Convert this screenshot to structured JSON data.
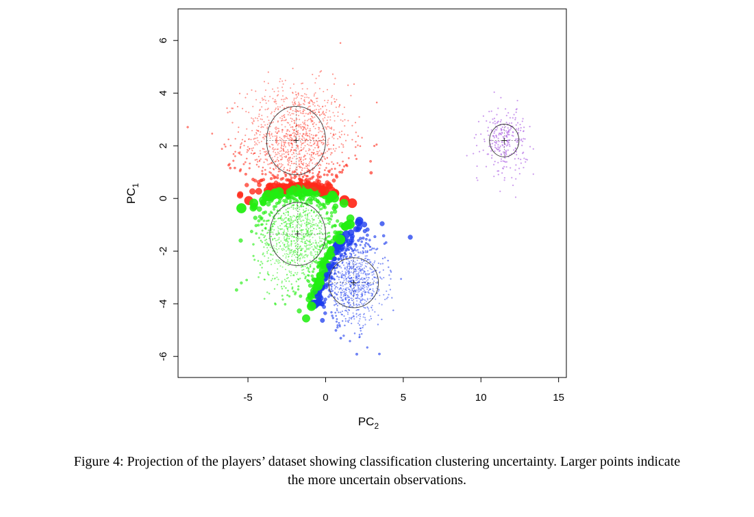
{
  "figure": {
    "caption_line1": "Figure 4: Projection of the players’ dataset showing classification clustering uncertainty. Larger points indicate",
    "caption_line2": "the more uncertain observations."
  },
  "chart_data": {
    "type": "scatter",
    "title": "",
    "xlabel": "PC",
    "xlabel_subscript": "2",
    "ylabel": "PC",
    "ylabel_subscript": "1",
    "xlim": [
      -9.5,
      15.5
    ],
    "ylim": [
      -6.8,
      7.2
    ],
    "xticks": [
      -5,
      0,
      5,
      10,
      15
    ],
    "xtick_labels": [
      "-5",
      "0",
      "5",
      "10",
      "15"
    ],
    "yticks": [
      -6,
      -4,
      -2,
      0,
      2,
      4,
      6
    ],
    "ytick_labels": [
      "-6",
      "-4",
      "-2",
      "0",
      "2",
      "4",
      "6"
    ],
    "grid": false,
    "legend": "none",
    "point_size_encodes": "classification uncertainty",
    "series": [
      {
        "color": "#ff2a1a",
        "center": [
          -1.9,
          2.2
        ],
        "spread": [
          2.4,
          1.5
        ],
        "count": 1200,
        "ellipse": {
          "cx": -1.9,
          "cy": 2.2,
          "rx": 1.9,
          "ry": 1.3
        }
      },
      {
        "color": "#22ee11",
        "center": [
          -1.8,
          -1.35
        ],
        "spread": [
          1.7,
          1.4
        ],
        "count": 1100,
        "ellipse": {
          "cx": -1.8,
          "cy": -1.35,
          "rx": 1.8,
          "ry": 1.2
        }
      },
      {
        "color": "#1a3aee",
        "center": [
          1.8,
          -3.2
        ],
        "spread": [
          1.4,
          1.1
        ],
        "count": 900,
        "ellipse": {
          "cx": 1.8,
          "cy": -3.2,
          "rx": 1.6,
          "ry": 0.95
        }
      },
      {
        "color": "#b36de6",
        "center": [
          11.5,
          2.2
        ],
        "spread": [
          1.0,
          0.85
        ],
        "count": 260,
        "ellipse": {
          "cx": 11.5,
          "cy": 2.2,
          "rx": 0.95,
          "ry": 0.62
        }
      }
    ]
  }
}
